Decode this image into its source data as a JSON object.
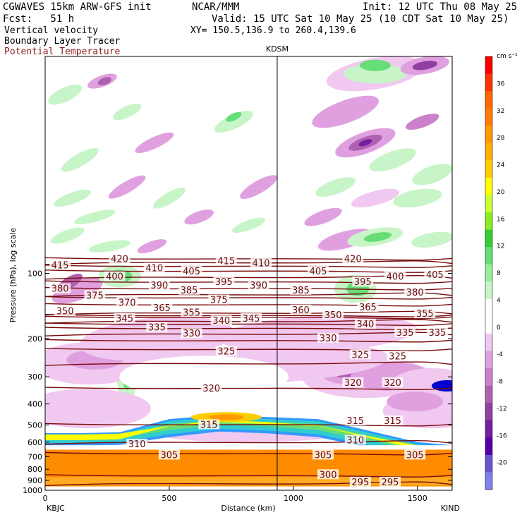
{
  "header": {
    "model": "CGWAVES 15km ARW-GFS init",
    "org": "NCAR/MMM",
    "init": "Init: 12 UTC Thu 08 May 25",
    "fcst": "Fcst:   51 h",
    "valid": "Valid: 15 UTC Sat 10 May 25 (10 CDT Sat 10 May 25)",
    "field1": "Vertical velocity",
    "field2": "Boundary Layer Tracer",
    "field3": "Potential Temperature",
    "field3_color": "#8b1a1a",
    "xy": "XY= 150.5,136.9 to 260.4,139.6"
  },
  "chart_data": {
    "type": "heatmap",
    "title": "",
    "xlabel": "Distance (km)",
    "ylabel": "Pressure (hPa), log scale",
    "xlim": [
      0,
      1640
    ],
    "ylim": [
      1000,
      10
    ],
    "x_ticks": [
      0,
      500,
      1000,
      1500
    ],
    "x_tick_labels": [
      "0",
      "500",
      "1000",
      "1500"
    ],
    "y_ticks": [
      100,
      200,
      300,
      400,
      500,
      600,
      700,
      800,
      900,
      1000
    ],
    "y_tick_labels": [
      "100",
      "200",
      "300",
      "400",
      "500",
      "600",
      "700",
      "800",
      "900",
      "1000"
    ],
    "station_left": "KBJC",
    "station_right": "KIND",
    "station_mid": "KDSM",
    "station_mid_x": 935,
    "colorbar": {
      "units": "cm s⁻¹",
      "labels": [
        "36",
        "32",
        "28",
        "24",
        "20",
        "16",
        "12",
        "8",
        "4",
        "0",
        "-4",
        "-8",
        "-12",
        "-16",
        "-20"
      ],
      "colors": [
        "#ff0000",
        "#ff3300",
        "#ff6600",
        "#ff7a00",
        "#ff9900",
        "#ffb000",
        "#ffcc00",
        "#ffff00",
        "#ccff33",
        "#88ee22",
        "#33cc33",
        "#66dd77",
        "#99ee99",
        "#c8f5c8",
        "#ffffff",
        "#ffffff",
        "#f0c8f0",
        "#e0a0e0",
        "#cc80cc",
        "#b060b0",
        "#9040a0",
        "#7020a0",
        "#5500aa",
        "#6655cc",
        "#8080ee"
      ]
    },
    "theta_contours": [
      {
        "value": 295,
        "pressure": 930
      },
      {
        "value": 300,
        "pressure": 860
      },
      {
        "value": 305,
        "pressure": 680
      },
      {
        "value": 310,
        "pressure": 600
      },
      {
        "value": 315,
        "pressure": 500
      },
      {
        "value": 320,
        "pressure": 340
      },
      {
        "value": 325,
        "pressure": 260
      },
      {
        "value": 330,
        "pressure": 225
      },
      {
        "value": 335,
        "pressure": 205
      },
      {
        "value": 340,
        "pressure": 190
      },
      {
        "value": 345,
        "pressure": 180
      },
      {
        "value": 350,
        "pressure": 172
      },
      {
        "value": 355,
        "pressure": 166
      },
      {
        "value": 360,
        "pressure": 160
      },
      {
        "value": 365,
        "pressure": 157
      },
      {
        "value": 370,
        "pressure": 152
      },
      {
        "value": 375,
        "pressure": 140
      },
      {
        "value": 380,
        "pressure": 130
      },
      {
        "value": 385,
        "pressure": 125
      },
      {
        "value": 390,
        "pressure": 118
      },
      {
        "value": 395,
        "pressure": 110
      },
      {
        "value": 400,
        "pressure": 104
      },
      {
        "value": 405,
        "pressure": 98
      },
      {
        "value": 410,
        "pressure": 93
      },
      {
        "value": 415,
        "pressure": 89
      },
      {
        "value": 420,
        "pressure": 86
      }
    ],
    "contour_labels": [
      {
        "text": "415",
        "x": 60,
        "p": 92
      },
      {
        "text": "420",
        "x": 300,
        "p": 86
      },
      {
        "text": "415",
        "x": 730,
        "p": 88
      },
      {
        "text": "410",
        "x": 870,
        "p": 90
      },
      {
        "text": "420",
        "x": 1240,
        "p": 86
      },
      {
        "text": "410",
        "x": 440,
        "p": 95
      },
      {
        "text": "405",
        "x": 590,
        "p": 98
      },
      {
        "text": "400",
        "x": 280,
        "p": 104
      },
      {
        "text": "405",
        "x": 1100,
        "p": 98
      },
      {
        "text": "400",
        "x": 1410,
        "p": 104
      },
      {
        "text": "405",
        "x": 1570,
        "p": 102
      },
      {
        "text": "390",
        "x": 460,
        "p": 114
      },
      {
        "text": "395",
        "x": 720,
        "p": 110
      },
      {
        "text": "390",
        "x": 860,
        "p": 114
      },
      {
        "text": "395",
        "x": 1280,
        "p": 110
      },
      {
        "text": "380",
        "x": 60,
        "p": 118
      },
      {
        "text": "385",
        "x": 580,
        "p": 120
      },
      {
        "text": "385",
        "x": 1030,
        "p": 120
      },
      {
        "text": "380",
        "x": 1490,
        "p": 123
      },
      {
        "text": "375",
        "x": 200,
        "p": 127
      },
      {
        "text": "375",
        "x": 700,
        "p": 133
      },
      {
        "text": "370",
        "x": 330,
        "p": 137
      },
      {
        "text": "365",
        "x": 470,
        "p": 145
      },
      {
        "text": "360",
        "x": 1030,
        "p": 148
      },
      {
        "text": "365",
        "x": 1300,
        "p": 144
      },
      {
        "text": "350",
        "x": 80,
        "p": 150
      },
      {
        "text": "355",
        "x": 590,
        "p": 152
      },
      {
        "text": "350",
        "x": 1160,
        "p": 156
      },
      {
        "text": "355",
        "x": 1530,
        "p": 154
      },
      {
        "text": "345",
        "x": 320,
        "p": 162
      },
      {
        "text": "340",
        "x": 710,
        "p": 166
      },
      {
        "text": "345",
        "x": 830,
        "p": 162
      },
      {
        "text": "340",
        "x": 1290,
        "p": 172
      },
      {
        "text": "335",
        "x": 450,
        "p": 178
      },
      {
        "text": "335",
        "x": 1450,
        "p": 188
      },
      {
        "text": "335",
        "x": 1580,
        "p": 188
      },
      {
        "text": "330",
        "x": 590,
        "p": 190
      },
      {
        "text": "330",
        "x": 1140,
        "p": 200
      },
      {
        "text": "325",
        "x": 730,
        "p": 230
      },
      {
        "text": "325",
        "x": 1270,
        "p": 238
      },
      {
        "text": "325",
        "x": 1420,
        "p": 242
      },
      {
        "text": "320",
        "x": 670,
        "p": 340
      },
      {
        "text": "320",
        "x": 1240,
        "p": 320
      },
      {
        "text": "320",
        "x": 1400,
        "p": 320
      },
      {
        "text": "315",
        "x": 660,
        "p": 500
      },
      {
        "text": "315",
        "x": 1250,
        "p": 480
      },
      {
        "text": "315",
        "x": 1400,
        "p": 480
      },
      {
        "text": "310",
        "x": 370,
        "p": 615
      },
      {
        "text": "310",
        "x": 1250,
        "p": 590
      },
      {
        "text": "305",
        "x": 500,
        "p": 690
      },
      {
        "text": "305",
        "x": 1120,
        "p": 690
      },
      {
        "text": "305",
        "x": 1490,
        "p": 690
      },
      {
        "text": "300",
        "x": 1140,
        "p": 850
      },
      {
        "text": "295",
        "x": 1270,
        "p": 920
      },
      {
        "text": "295",
        "x": 1390,
        "p": 920
      }
    ],
    "boundary_layer": [
      {
        "x": 0,
        "top": 545,
        "core_top": 570
      },
      {
        "x": 150,
        "top": 545,
        "core_top": 570
      },
      {
        "x": 300,
        "top": 540,
        "core_top": 565
      },
      {
        "x": 500,
        "top": 470,
        "core_top": 520
      },
      {
        "x": 700,
        "top": 450,
        "core_top": 490
      },
      {
        "x": 900,
        "top": 460,
        "core_top": 500
      },
      {
        "x": 1100,
        "top": 470,
        "core_top": 520
      },
      {
        "x": 1300,
        "top": 530,
        "core_top": 580
      },
      {
        "x": 1500,
        "top": 600,
        "core_top": 640
      },
      {
        "x": 1640,
        "top": 620,
        "core_top": 650
      }
    ]
  }
}
